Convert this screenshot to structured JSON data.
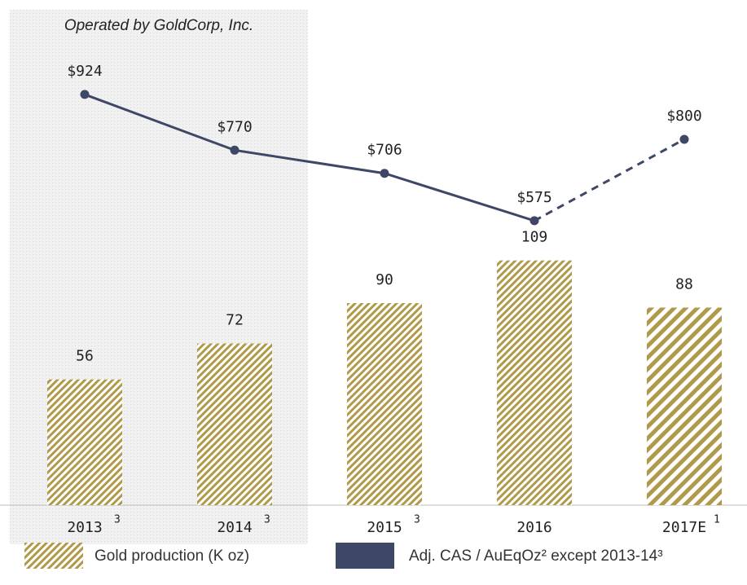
{
  "chart_data": {
    "type": "bar-line",
    "annotation": "Operated by GoldCorp, Inc.",
    "shaded_categories": [
      "2013",
      "2014"
    ],
    "categories": [
      "2013",
      "2014",
      "2015",
      "2016",
      "2017E"
    ],
    "category_notes": [
      "3",
      "3",
      "3",
      null,
      "1"
    ],
    "ylim": [
      0,
      225
    ],
    "y2lim": [
      -211,
      1185
    ],
    "series": [
      {
        "name": "Gold production (K oz)",
        "color": "#b09a4a",
        "values": [
          56,
          72,
          90,
          109,
          88
        ]
      },
      {
        "name": "Adj. CAS / AuEqOz² except 2013-14³",
        "color": "#3f4766",
        "axis": "y2",
        "values": [
          924,
          770,
          706,
          575,
          800
        ],
        "value_labels": [
          "$924",
          "$770",
          "$706",
          "$575",
          "$800"
        ],
        "projected": [
          false,
          false,
          false,
          false,
          true
        ]
      }
    ]
  }
}
